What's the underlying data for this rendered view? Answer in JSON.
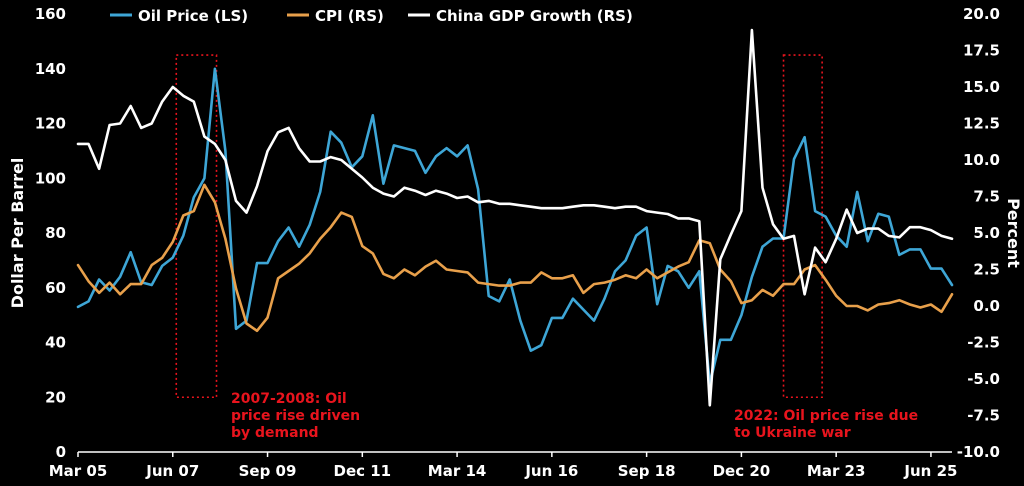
{
  "chart_data": {
    "type": "line",
    "title": "",
    "x_ticks": [
      "Mar 05",
      "Jun 07",
      "Sep 09",
      "Dec 11",
      "Mar 14",
      "Jun 16",
      "Sep 18",
      "Dec 20",
      "Mar 23",
      "Jun 25"
    ],
    "y_left": {
      "label": "Dollar Per Barrel",
      "lim": [
        0,
        160
      ],
      "ticks": [
        "0",
        "20",
        "40",
        "60",
        "80",
        "100",
        "120",
        "140",
        "160"
      ]
    },
    "y_right": {
      "label": "Percent",
      "lim": [
        -10,
        20
      ],
      "ticks": [
        "-10.0",
        "-7.5",
        "-5.0",
        "-2.5",
        "0.0",
        "2.5",
        "5.0",
        "7.5",
        "10.0",
        "12.5",
        "15.0",
        "17.5",
        "20.0"
      ]
    },
    "grid": false,
    "legend": {
      "placement": "top",
      "entries": [
        "Oil Price (LS)",
        "CPI (RS)",
        "China GDP Growth (RS)"
      ]
    },
    "colors": {
      "oil": "#3ea6d6",
      "cpi": "#e8a04b",
      "gdp": "#ffffff",
      "annotation": "#e8141d",
      "background": "#000000"
    },
    "series": [
      {
        "name": "Oil Price (LS)",
        "axis": "left",
        "points": [
          [
            "2005-03-01",
            53
          ],
          [
            "2005-06-01",
            55
          ],
          [
            "2005-09-01",
            63
          ],
          [
            "2005-12-01",
            59
          ],
          [
            "2006-03-01",
            64
          ],
          [
            "2006-06-01",
            73
          ],
          [
            "2006-09-01",
            62
          ],
          [
            "2006-12-01",
            61
          ],
          [
            "2007-03-01",
            68
          ],
          [
            "2007-06-01",
            71
          ],
          [
            "2007-09-01",
            79
          ],
          [
            "2007-12-01",
            93
          ],
          [
            "2008-03-01",
            100
          ],
          [
            "2008-06-01",
            140
          ],
          [
            "2008-09-01",
            110
          ],
          [
            "2008-12-01",
            45
          ],
          [
            "2009-03-01",
            48
          ],
          [
            "2009-06-01",
            69
          ],
          [
            "2009-09-01",
            69
          ],
          [
            "2009-12-01",
            77
          ],
          [
            "2010-03-01",
            82
          ],
          [
            "2010-06-01",
            75
          ],
          [
            "2010-09-01",
            83
          ],
          [
            "2010-12-01",
            95
          ],
          [
            "2011-03-01",
            117
          ],
          [
            "2011-06-01",
            113
          ],
          [
            "2011-09-01",
            104
          ],
          [
            "2011-12-01",
            108
          ],
          [
            "2012-03-01",
            123
          ],
          [
            "2012-06-01",
            98
          ],
          [
            "2012-09-01",
            112
          ],
          [
            "2012-12-01",
            111
          ],
          [
            "2013-03-01",
            110
          ],
          [
            "2013-06-01",
            102
          ],
          [
            "2013-09-01",
            108
          ],
          [
            "2013-12-01",
            111
          ],
          [
            "2014-03-01",
            108
          ],
          [
            "2014-06-01",
            112
          ],
          [
            "2014-09-01",
            96
          ],
          [
            "2014-12-01",
            57
          ],
          [
            "2015-03-01",
            55
          ],
          [
            "2015-06-01",
            63
          ],
          [
            "2015-09-01",
            48
          ],
          [
            "2015-12-01",
            37
          ],
          [
            "2016-03-01",
            39
          ],
          [
            "2016-06-01",
            49
          ],
          [
            "2016-09-01",
            49
          ],
          [
            "2016-12-01",
            56
          ],
          [
            "2017-03-01",
            52
          ],
          [
            "2017-06-01",
            48
          ],
          [
            "2017-09-01",
            56
          ],
          [
            "2017-12-01",
            66
          ],
          [
            "2018-03-01",
            70
          ],
          [
            "2018-06-01",
            79
          ],
          [
            "2018-09-01",
            82
          ],
          [
            "2018-12-01",
            54
          ],
          [
            "2019-03-01",
            68
          ],
          [
            "2019-06-01",
            66
          ],
          [
            "2019-09-01",
            60
          ],
          [
            "2019-12-01",
            66
          ],
          [
            "2020-03-01",
            25
          ],
          [
            "2020-06-01",
            41
          ],
          [
            "2020-09-01",
            41
          ],
          [
            "2020-12-01",
            50
          ],
          [
            "2021-03-01",
            64
          ],
          [
            "2021-06-01",
            75
          ],
          [
            "2021-09-01",
            78
          ],
          [
            "2021-12-01",
            78
          ],
          [
            "2022-03-01",
            107
          ],
          [
            "2022-06-01",
            115
          ],
          [
            "2022-09-01",
            88
          ],
          [
            "2022-12-01",
            86
          ],
          [
            "2023-03-01",
            79
          ],
          [
            "2023-06-01",
            75
          ],
          [
            "2023-09-01",
            95
          ],
          [
            "2023-12-01",
            77
          ],
          [
            "2024-03-01",
            87
          ],
          [
            "2024-06-01",
            86
          ],
          [
            "2024-09-01",
            72
          ],
          [
            "2024-12-01",
            74
          ],
          [
            "2025-03-01",
            74
          ],
          [
            "2025-06-01",
            67
          ],
          [
            "2025-09-01",
            67
          ],
          [
            "2025-12-01",
            61
          ]
        ]
      },
      {
        "name": "CPI (RS)",
        "axis": "right",
        "points": [
          [
            "2005-03-01",
            2.8
          ],
          [
            "2005-06-01",
            1.7
          ],
          [
            "2005-09-01",
            0.9
          ],
          [
            "2005-12-01",
            1.6
          ],
          [
            "2006-03-01",
            0.8
          ],
          [
            "2006-06-01",
            1.5
          ],
          [
            "2006-09-01",
            1.5
          ],
          [
            "2006-12-01",
            2.8
          ],
          [
            "2007-03-01",
            3.3
          ],
          [
            "2007-06-01",
            4.4
          ],
          [
            "2007-09-01",
            6.2
          ],
          [
            "2007-12-01",
            6.5
          ],
          [
            "2008-03-01",
            8.3
          ],
          [
            "2008-06-01",
            7.1
          ],
          [
            "2008-09-01",
            4.6
          ],
          [
            "2008-12-01",
            1.2
          ],
          [
            "2009-03-01",
            -1.2
          ],
          [
            "2009-06-01",
            -1.7
          ],
          [
            "2009-09-01",
            -0.8
          ],
          [
            "2009-12-01",
            1.9
          ],
          [
            "2010-03-01",
            2.4
          ],
          [
            "2010-06-01",
            2.9
          ],
          [
            "2010-09-01",
            3.6
          ],
          [
            "2010-12-01",
            4.6
          ],
          [
            "2011-03-01",
            5.4
          ],
          [
            "2011-06-01",
            6.4
          ],
          [
            "2011-09-01",
            6.1
          ],
          [
            "2011-12-01",
            4.1
          ],
          [
            "2012-03-01",
            3.6
          ],
          [
            "2012-06-01",
            2.2
          ],
          [
            "2012-09-01",
            1.9
          ],
          [
            "2012-12-01",
            2.5
          ],
          [
            "2013-03-01",
            2.1
          ],
          [
            "2013-06-01",
            2.7
          ],
          [
            "2013-09-01",
            3.1
          ],
          [
            "2013-12-01",
            2.5
          ],
          [
            "2014-03-01",
            2.4
          ],
          [
            "2014-06-01",
            2.3
          ],
          [
            "2014-09-01",
            1.6
          ],
          [
            "2014-12-01",
            1.5
          ],
          [
            "2015-03-01",
            1.4
          ],
          [
            "2015-06-01",
            1.4
          ],
          [
            "2015-09-01",
            1.6
          ],
          [
            "2015-12-01",
            1.6
          ],
          [
            "2016-03-01",
            2.3
          ],
          [
            "2016-06-01",
            1.9
          ],
          [
            "2016-09-01",
            1.9
          ],
          [
            "2016-12-01",
            2.1
          ],
          [
            "2017-03-01",
            0.9
          ],
          [
            "2017-06-01",
            1.5
          ],
          [
            "2017-09-01",
            1.6
          ],
          [
            "2017-12-01",
            1.8
          ],
          [
            "2018-03-01",
            2.1
          ],
          [
            "2018-06-01",
            1.9
          ],
          [
            "2018-09-01",
            2.5
          ],
          [
            "2018-12-01",
            1.9
          ],
          [
            "2019-03-01",
            2.3
          ],
          [
            "2019-06-01",
            2.7
          ],
          [
            "2019-09-01",
            3.0
          ],
          [
            "2019-12-01",
            4.5
          ],
          [
            "2020-03-01",
            4.3
          ],
          [
            "2020-06-01",
            2.5
          ],
          [
            "2020-09-01",
            1.7
          ],
          [
            "2020-12-01",
            0.2
          ],
          [
            "2021-03-01",
            0.4
          ],
          [
            "2021-06-01",
            1.1
          ],
          [
            "2021-09-01",
            0.7
          ],
          [
            "2021-12-01",
            1.5
          ],
          [
            "2022-03-01",
            1.5
          ],
          [
            "2022-06-01",
            2.5
          ],
          [
            "2022-09-01",
            2.8
          ],
          [
            "2022-12-01",
            1.8
          ],
          [
            "2023-03-01",
            0.7
          ],
          [
            "2023-06-01",
            0.0
          ],
          [
            "2023-09-01",
            0.0
          ],
          [
            "2023-12-01",
            -0.3
          ],
          [
            "2024-03-01",
            0.1
          ],
          [
            "2024-06-01",
            0.2
          ],
          [
            "2024-09-01",
            0.4
          ],
          [
            "2024-12-01",
            0.1
          ],
          [
            "2025-03-01",
            -0.1
          ],
          [
            "2025-06-01",
            0.1
          ],
          [
            "2025-09-01",
            -0.4
          ],
          [
            "2025-12-01",
            0.8
          ]
        ]
      },
      {
        "name": "China GDP Growth (RS)",
        "axis": "right",
        "points": [
          [
            "2005-03-01",
            11.1
          ],
          [
            "2005-06-01",
            11.1
          ],
          [
            "2005-09-01",
            9.4
          ],
          [
            "2005-12-01",
            12.4
          ],
          [
            "2006-03-01",
            12.5
          ],
          [
            "2006-06-01",
            13.7
          ],
          [
            "2006-09-01",
            12.2
          ],
          [
            "2006-12-01",
            12.5
          ],
          [
            "2007-03-01",
            14.0
          ],
          [
            "2007-06-01",
            15.0
          ],
          [
            "2007-09-01",
            14.4
          ],
          [
            "2007-12-01",
            14.0
          ],
          [
            "2008-03-01",
            11.6
          ],
          [
            "2008-06-01",
            11.1
          ],
          [
            "2008-09-01",
            10.0
          ],
          [
            "2008-12-01",
            7.2
          ],
          [
            "2009-03-01",
            6.4
          ],
          [
            "2009-06-01",
            8.2
          ],
          [
            "2009-09-01",
            10.6
          ],
          [
            "2009-12-01",
            11.9
          ],
          [
            "2010-03-01",
            12.2
          ],
          [
            "2010-06-01",
            10.8
          ],
          [
            "2010-09-01",
            9.9
          ],
          [
            "2010-12-01",
            9.9
          ],
          [
            "2011-03-01",
            10.2
          ],
          [
            "2011-06-01",
            10.0
          ],
          [
            "2011-09-01",
            9.4
          ],
          [
            "2011-12-01",
            8.8
          ],
          [
            "2012-03-01",
            8.1
          ],
          [
            "2012-06-01",
            7.7
          ],
          [
            "2012-09-01",
            7.5
          ],
          [
            "2012-12-01",
            8.1
          ],
          [
            "2013-03-01",
            7.9
          ],
          [
            "2013-06-01",
            7.6
          ],
          [
            "2013-09-01",
            7.9
          ],
          [
            "2013-12-01",
            7.7
          ],
          [
            "2014-03-01",
            7.4
          ],
          [
            "2014-06-01",
            7.5
          ],
          [
            "2014-09-01",
            7.1
          ],
          [
            "2014-12-01",
            7.2
          ],
          [
            "2015-03-01",
            7.0
          ],
          [
            "2015-06-01",
            7.0
          ],
          [
            "2015-09-01",
            6.9
          ],
          [
            "2015-12-01",
            6.8
          ],
          [
            "2016-03-01",
            6.7
          ],
          [
            "2016-06-01",
            6.7
          ],
          [
            "2016-09-01",
            6.7
          ],
          [
            "2016-12-01",
            6.8
          ],
          [
            "2017-03-01",
            6.9
          ],
          [
            "2017-06-01",
            6.9
          ],
          [
            "2017-09-01",
            6.8
          ],
          [
            "2017-12-01",
            6.7
          ],
          [
            "2018-03-01",
            6.8
          ],
          [
            "2018-06-01",
            6.8
          ],
          [
            "2018-09-01",
            6.5
          ],
          [
            "2018-12-01",
            6.4
          ],
          [
            "2019-03-01",
            6.3
          ],
          [
            "2019-06-01",
            6.0
          ],
          [
            "2019-09-01",
            6.0
          ],
          [
            "2019-12-01",
            5.8
          ],
          [
            "2020-03-01",
            -6.8
          ],
          [
            "2020-06-01",
            3.2
          ],
          [
            "2020-09-01",
            4.9
          ],
          [
            "2020-12-01",
            6.5
          ],
          [
            "2021-03-01",
            18.9
          ],
          [
            "2021-06-01",
            8.1
          ],
          [
            "2021-09-01",
            5.6
          ],
          [
            "2021-12-01",
            4.6
          ],
          [
            "2022-03-01",
            4.8
          ],
          [
            "2022-06-01",
            0.8
          ],
          [
            "2022-09-01",
            4.0
          ],
          [
            "2022-12-01",
            3.0
          ],
          [
            "2023-03-01",
            4.6
          ],
          [
            "2023-06-01",
            6.6
          ],
          [
            "2023-09-01",
            5.0
          ],
          [
            "2023-12-01",
            5.3
          ],
          [
            "2024-03-01",
            5.3
          ],
          [
            "2024-06-01",
            4.8
          ],
          [
            "2024-09-01",
            4.7
          ],
          [
            "2024-12-01",
            5.4
          ],
          [
            "2025-03-01",
            5.4
          ],
          [
            "2025-06-01",
            5.2
          ],
          [
            "2025-09-01",
            4.8
          ],
          [
            "2025-12-01",
            4.6
          ]
        ]
      }
    ],
    "annotations": [
      {
        "lines": [
          "2007-2008: Oil",
          "price rise driven",
          "by demand"
        ],
        "box_x": [
          "2007-07-01",
          "2008-06-15"
        ],
        "box_y_left": [
          20,
          145
        ]
      },
      {
        "lines": [
          "2022: Oil price rise due",
          "to Ukraine war"
        ],
        "box_x": [
          "2021-12-01",
          "2022-11-01"
        ],
        "box_y_left": [
          20,
          145
        ]
      }
    ]
  }
}
